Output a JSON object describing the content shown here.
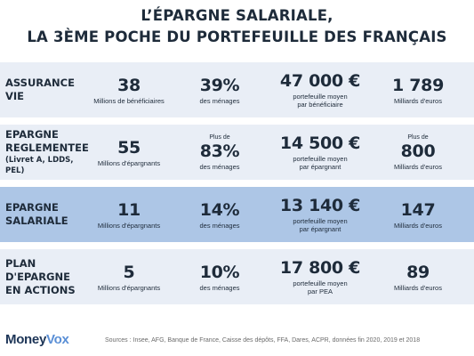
{
  "title": {
    "line1": "L’ÉPARGNE SALARIALE,",
    "line2": "LA 3ÈME POCHE DU PORTEFEUILLE DES FRANÇAIS"
  },
  "colors": {
    "row_background": "#e9eef6",
    "row_highlight": "#adc6e6",
    "text": "#1e2b3a",
    "logo_money": "#1d3557",
    "logo_vox": "#5a8fd6"
  },
  "chart_data": {
    "type": "table",
    "columns": [
      "beneficiaries",
      "households_share",
      "average_portfolio",
      "total_outstanding"
    ],
    "rows": [
      {
        "label_lines": [
          "ASSURANCE",
          "VIE"
        ],
        "label_sub": "",
        "highlight": false,
        "cells": [
          {
            "pre": "",
            "value": "38",
            "caption_lines": [
              "Millions de bénéficiaires"
            ]
          },
          {
            "pre": "",
            "value": "39%",
            "caption_lines": [
              "des ménages"
            ]
          },
          {
            "pre": "",
            "value": "47 000 €",
            "caption_lines": [
              "portefeuille moyen",
              "par bénéficiaire"
            ]
          },
          {
            "pre": "",
            "value": "1 789",
            "caption_lines": [
              "Milliards d'euros"
            ]
          }
        ]
      },
      {
        "label_lines": [
          "EPARGNE",
          "REGLEMENTEE"
        ],
        "label_sub": "(Livret A, LDDS, PEL)",
        "highlight": false,
        "cells": [
          {
            "pre": "",
            "value": "55",
            "caption_lines": [
              "Millions d'épargnants"
            ]
          },
          {
            "pre": "Plus de",
            "value": "83%",
            "caption_lines": [
              "des ménages"
            ]
          },
          {
            "pre": "",
            "value": "14 500 €",
            "caption_lines": [
              "portefeuille moyen",
              "par épargnant"
            ]
          },
          {
            "pre": "Plus de",
            "value": "800",
            "caption_lines": [
              "Milliards d'euros"
            ]
          }
        ]
      },
      {
        "label_lines": [
          "EPARGNE",
          "SALARIALE"
        ],
        "label_sub": "",
        "highlight": true,
        "cells": [
          {
            "pre": "",
            "value": "11",
            "caption_lines": [
              "Millions d'épargnants"
            ]
          },
          {
            "pre": "",
            "value": "14%",
            "caption_lines": [
              "des ménages"
            ]
          },
          {
            "pre": "",
            "value": "13 140 €",
            "caption_lines": [
              "portefeuille moyen",
              "par épargnant"
            ]
          },
          {
            "pre": "",
            "value": "147",
            "caption_lines": [
              "Milliards d'euros"
            ]
          }
        ]
      },
      {
        "label_lines": [
          "PLAN",
          "D'EPARGNE",
          "EN ACTIONS"
        ],
        "label_sub": "",
        "highlight": false,
        "cells": [
          {
            "pre": "",
            "value": "5",
            "caption_lines": [
              "Millions d'épargnants"
            ]
          },
          {
            "pre": "",
            "value": "10%",
            "caption_lines": [
              "des ménages"
            ]
          },
          {
            "pre": "",
            "value": "17 800 €",
            "caption_lines": [
              "portefeuille moyen",
              "par PEA"
            ]
          },
          {
            "pre": "",
            "value": "89",
            "caption_lines": [
              "Milliards d'euros"
            ]
          }
        ]
      }
    ]
  },
  "footer": {
    "logo_part1": "Money",
    "logo_part2": "Vox",
    "sources": "Sources : Insee, AFG, Banque de France, Caisse des dépôts, FFA, Dares, ACPR, données fin 2020, 2019 et 2018"
  }
}
